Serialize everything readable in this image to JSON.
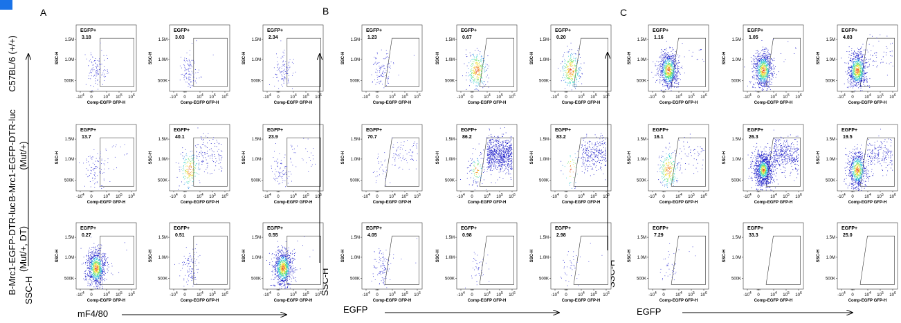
{
  "figure": {
    "panels": [
      {
        "letter": "A"
      },
      {
        "letter": "B"
      },
      {
        "letter": "C"
      }
    ],
    "row_labels": [
      [
        "C57BL/6 (+/+)"
      ],
      [
        "B-Mrc1-EGFP-DTR-luc",
        "(Mut/+)"
      ],
      [
        "B-Mrc1-EGFP-DTR-luc",
        "(Mut/+, DT)"
      ]
    ],
    "axis_captions": {
      "ssc": "SSC-H",
      "x_A": "mF4/80",
      "x_B": "EGFP",
      "x_C": "EGFP"
    },
    "plot_axes": {
      "x_label": "Comp-EGFP GFP-H",
      "y_label": "SSC-H",
      "x_ticks": [
        {
          "base": "-10",
          "exp": "4"
        },
        {
          "base": "0",
          "exp": ""
        },
        {
          "base": "10",
          "exp": "4"
        },
        {
          "base": "10",
          "exp": "5"
        },
        {
          "base": "10",
          "exp": "6"
        }
      ],
      "y_ticks": [
        "1.5M",
        "1.0M",
        "500K"
      ]
    },
    "gate_name": "EGFP+"
  },
  "chart_data": {
    "type": "scatter",
    "description_units": "gate percentages (%)",
    "panels": [
      {
        "panel": "A",
        "gate_shape": "rectangle",
        "rows": [
          {
            "row": "C57BL/6 (+/+)",
            "values": [
              "3.18",
              "3.03",
              "2.34"
            ],
            "density": [
              "low",
              "low",
              "low"
            ]
          },
          {
            "row": "B-Mrc1-EGFP-DTR-luc (Mut/+)",
            "values": [
              "13.7",
              "40.1",
              "23.9"
            ],
            "density": [
              "low",
              "medium",
              "low"
            ]
          },
          {
            "row": "B-Mrc1-EGFP-DTR-luc (Mut/+, DT)",
            "values": [
              "0.27",
              "0.51",
              "0.55"
            ],
            "density": [
              "high",
              "low",
              "high"
            ]
          }
        ]
      },
      {
        "panel": "B",
        "gate_shape": "trapezoid",
        "rows": [
          {
            "row": "C57BL/6 (+/+)",
            "values": [
              "1.23",
              "0.67",
              "0.20"
            ],
            "density": [
              "low",
              "medium",
              "medium"
            ]
          },
          {
            "row": "B-Mrc1-EGFP-DTR-luc (Mut/+)",
            "values": [
              "70.7",
              "86.2",
              "83.2"
            ],
            "density": [
              "low",
              "high",
              "medium"
            ]
          },
          {
            "row": "B-Mrc1-EGFP-DTR-luc (Mut/+, DT)",
            "values": [
              "4.05",
              "0.98",
              "2.98"
            ],
            "density": [
              "low",
              "sparse",
              "sparse"
            ]
          }
        ]
      },
      {
        "panel": "C",
        "gate_shape": "trapezoid",
        "rows": [
          {
            "row": "C57BL/6 (+/+)",
            "values": [
              "1.16",
              "1.05",
              "4.83"
            ],
            "density": [
              "high",
              "high",
              "high"
            ]
          },
          {
            "row": "B-Mrc1-EGFP-DTR-luc (Mut/+)",
            "values": [
              "16.1",
              "26.3",
              "19.5"
            ],
            "density": [
              "medium",
              "very-high",
              "high"
            ]
          },
          {
            "row": "B-Mrc1-EGFP-DTR-luc (Mut/+, DT)",
            "values": [
              "7.29",
              "33.3",
              "25.0"
            ],
            "density": [
              "sparse",
              "empty",
              "empty"
            ]
          }
        ]
      }
    ]
  },
  "colors": {
    "sparse_dot": "#3b3bd6",
    "density_ramp": [
      "#1b1bc8",
      "#1f7fe0",
      "#2fd0d0",
      "#6be06b",
      "#f0e030",
      "#f08020",
      "#e02010"
    ],
    "corner_mark": "#1a73e8"
  }
}
